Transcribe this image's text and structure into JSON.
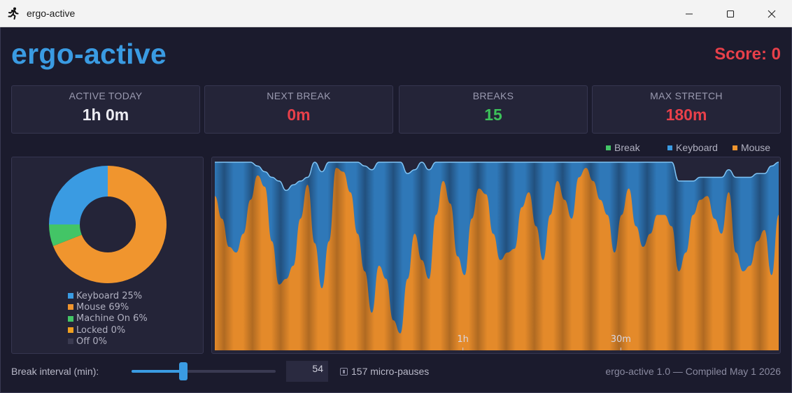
{
  "window": {
    "title": "ergo-active",
    "app_icon": "running-person-icon",
    "controls": [
      "minimize-icon",
      "maximize-icon",
      "close-icon"
    ]
  },
  "header": {
    "brand": "ergo-active",
    "score": "Score: 0"
  },
  "stats": [
    {
      "label": "ACTIVE TODAY",
      "value": "1h 0m",
      "color": "#ececf2"
    },
    {
      "label": "NEXT BREAK",
      "value": "0m",
      "color": "#e8404a"
    },
    {
      "label": "BREAKS",
      "value": "15",
      "color": "#3cc25a"
    },
    {
      "label": "MAX STRETCH",
      "value": "180m",
      "color": "#e8404a"
    }
  ],
  "colors": {
    "keyboard": "#3a9be2",
    "mouse": "#f0952e",
    "machine_on": "#43c566",
    "locked": "#f0a020",
    "off": "#3a3a50",
    "break": "#43c566"
  },
  "donut": {
    "legend": [
      {
        "label": "Keyboard 25%",
        "color": "#3a9be2"
      },
      {
        "label": "Mouse 69%",
        "color": "#f0952e"
      },
      {
        "label": "Machine On 6%",
        "color": "#43c566"
      },
      {
        "label": "Locked 0%",
        "color": "#f0a020"
      },
      {
        "label": "Off 0%",
        "color": "#3a3a50"
      }
    ]
  },
  "chart_legend": [
    {
      "label": "Break",
      "color": "#43c566"
    },
    {
      "label": "Keyboard",
      "color": "#3a9be2"
    },
    {
      "label": "Mouse",
      "color": "#f0952e"
    }
  ],
  "chart_data": [
    {
      "type": "pie",
      "categories": [
        "Keyboard",
        "Mouse",
        "Machine On",
        "Locked",
        "Off"
      ],
      "values": [
        25,
        69,
        6,
        0,
        0
      ],
      "donut": true
    },
    {
      "type": "area",
      "stacked": true,
      "x_ticks": [
        "1h",
        "30m"
      ],
      "x_tick_positions": [
        0.44,
        0.72
      ],
      "ylim": [
        0,
        1
      ],
      "grid": true,
      "legend": "top-right",
      "series": [
        {
          "name": "Mouse",
          "values": [
            0.82,
            0.7,
            0.55,
            0.52,
            0.62,
            0.8,
            0.93,
            0.87,
            0.58,
            0.35,
            0.38,
            0.45,
            0.7,
            0.88,
            0.57,
            0.33,
            0.58,
            0.97,
            0.95,
            0.84,
            0.62,
            0.42,
            0.2,
            0.45,
            0.38,
            0.16,
            0.09,
            0.38,
            0.62,
            0.48,
            0.38,
            0.72,
            0.9,
            0.78,
            0.5,
            0.4,
            0.7,
            0.86,
            0.83,
            0.62,
            0.48,
            0.52,
            0.54,
            0.76,
            0.84,
            0.66,
            0.48,
            0.72,
            0.9,
            0.8,
            0.7,
            0.92,
            0.97,
            0.9,
            0.8,
            0.72,
            0.52,
            0.72,
            0.86,
            0.66,
            0.55,
            0.62,
            0.72,
            0.72,
            0.66,
            0.42,
            0.52,
            0.72,
            0.8,
            0.82,
            0.7,
            0.62,
            0.84,
            0.52,
            0.42,
            0.45,
            0.58,
            0.64,
            0.4,
            0.72
          ]
        },
        {
          "name": "Keyboard",
          "values": [
            0.18,
            0.3,
            0.45,
            0.48,
            0.38,
            0.2,
            0.05,
            0.08,
            0.34,
            0.55,
            0.47,
            0.43,
            0.2,
            0.04,
            0.43,
            0.62,
            0.42,
            0.03,
            0.05,
            0.16,
            0.38,
            0.56,
            0.76,
            0.55,
            0.62,
            0.84,
            0.91,
            0.56,
            0.34,
            0.52,
            0.58,
            0.28,
            0.1,
            0.22,
            0.5,
            0.6,
            0.3,
            0.14,
            0.17,
            0.38,
            0.52,
            0.48,
            0.46,
            0.24,
            0.16,
            0.34,
            0.52,
            0.28,
            0.1,
            0.2,
            0.3,
            0.08,
            0.03,
            0.1,
            0.2,
            0.28,
            0.48,
            0.28,
            0.14,
            0.34,
            0.45,
            0.38,
            0.28,
            0.28,
            0.34,
            0.48,
            0.38,
            0.18,
            0.12,
            0.1,
            0.22,
            0.3,
            0.12,
            0.4,
            0.5,
            0.47,
            0.36,
            0.3,
            0.58,
            0.28
          ]
        }
      ]
    }
  ],
  "footer": {
    "break_label": "Break interval (min):",
    "break_value": "54",
    "slider_fraction": 0.35,
    "micro_pauses": "157 micro-pauses",
    "version": "ergo-active 1.0 — Compiled May  1 2026"
  }
}
